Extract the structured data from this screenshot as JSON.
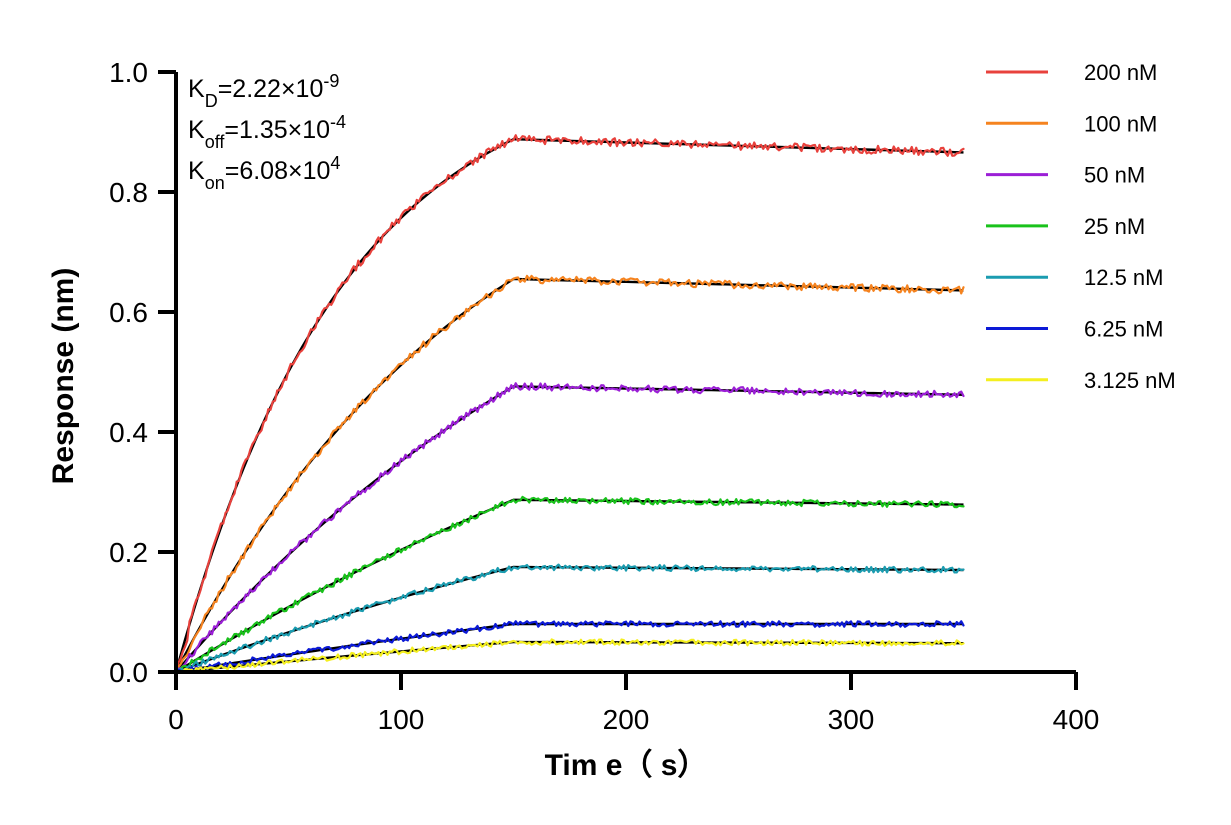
{
  "chart_data": {
    "type": "line",
    "xlabel": "Tim e（ s）",
    "ylabel": "Response (nm)",
    "xlim": [
      0,
      400
    ],
    "ylim": [
      0,
      1.0
    ],
    "x_ticks": [
      0,
      100,
      200,
      300,
      400
    ],
    "x_tick_labels": [
      "0",
      "100",
      "200",
      "300",
      "400"
    ],
    "y_ticks": [
      0,
      0.2,
      0.4,
      0.6,
      0.8,
      1.0
    ],
    "y_tick_labels": [
      "0.0",
      "0.2",
      "0.4",
      "0.6",
      "0.8",
      "1.0"
    ],
    "grid": false,
    "legend_position": "top-right",
    "association_end_time": 150,
    "end_time": 350,
    "annotations": {
      "kd": {
        "base": "K",
        "sub": "D",
        "value": "=2.22×10",
        "exp": "-9"
      },
      "koff": {
        "base": "K",
        "sub": "off",
        "value": "=1.35×10",
        "exp": "-4"
      },
      "kon": {
        "base": "K",
        "sub": "on",
        "value": "=6.08×10",
        "exp": "4"
      }
    },
    "series": [
      {
        "name": "200 nM",
        "color": "#e8413c",
        "plateau": 0.888,
        "end_value": 0.866,
        "k": 0.0134
      },
      {
        "name": "100 nM",
        "color": "#f5831f",
        "plateau": 0.655,
        "end_value": 0.636,
        "k": 0.0075
      },
      {
        "name": "50 nM",
        "color": "#9b1fd6",
        "plateau": 0.476,
        "end_value": 0.462,
        "k": 0.0045
      },
      {
        "name": "25 nM",
        "color": "#19c21b",
        "plateau": 0.287,
        "end_value": 0.279,
        "k": 0.0026
      },
      {
        "name": "12.5 nM",
        "color": "#1b9cb0",
        "plateau": 0.175,
        "end_value": 0.17,
        "k": 0.0026
      },
      {
        "name": "6.25 nM",
        "color": "#0c1ad6",
        "plateau": 0.08,
        "end_value": 0.08,
        "k": 0.0016
      },
      {
        "name": "3.125 nM",
        "color": "#f4ef1f",
        "plateau": 0.05,
        "end_value": 0.048,
        "k": 0.0012
      }
    ]
  }
}
